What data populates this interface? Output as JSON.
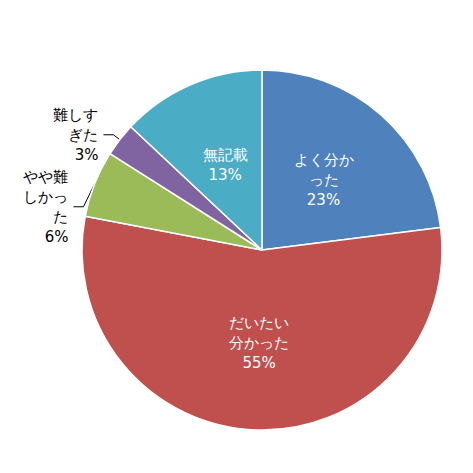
{
  "chart_data": {
    "type": "pie",
    "categories": [
      "よく分かった",
      "だいたい分かった",
      "やや難しかった",
      "難しすぎた",
      "無記載"
    ],
    "values": [
      23,
      55,
      6,
      3,
      13
    ],
    "value_labels": [
      "23%",
      "55%",
      "6%",
      "3%",
      "13%"
    ],
    "colors": [
      "#4f81bd",
      "#c0504d",
      "#9bbb59",
      "#8064a2",
      "#4bacc6"
    ],
    "data_labels": true
  }
}
